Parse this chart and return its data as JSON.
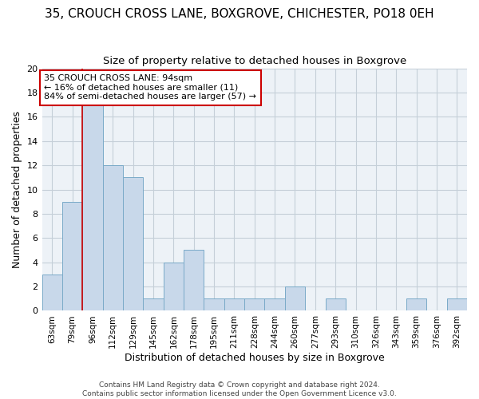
{
  "title": "35, CROUCH CROSS LANE, BOXGROVE, CHICHESTER, PO18 0EH",
  "subtitle": "Size of property relative to detached houses in Boxgrove",
  "xlabel": "Distribution of detached houses by size in Boxgrove",
  "ylabel": "Number of detached properties",
  "bar_values": [
    3,
    9,
    17,
    12,
    11,
    1,
    4,
    5,
    1,
    1,
    1,
    1,
    2,
    0,
    1,
    0,
    0,
    0,
    1,
    0,
    1
  ],
  "bin_labels": [
    "63sqm",
    "79sqm",
    "96sqm",
    "112sqm",
    "129sqm",
    "145sqm",
    "162sqm",
    "178sqm",
    "195sqm",
    "211sqm",
    "228sqm",
    "244sqm",
    "260sqm",
    "277sqm",
    "293sqm",
    "310sqm",
    "326sqm",
    "343sqm",
    "359sqm",
    "376sqm",
    "392sqm"
  ],
  "bar_color": "#c8d8ea",
  "bar_edge_color": "#7aaac8",
  "property_line_x": 1.5,
  "annotation_line1": "35 CROUCH CROSS LANE: 94sqm",
  "annotation_line2": "← 16% of detached houses are smaller (11)",
  "annotation_line3": "84% of semi-detached houses are larger (57) →",
  "annotation_box_color": "#ffffff",
  "annotation_box_edge": "#cc0000",
  "red_line_color": "#cc0000",
  "ylim": [
    0,
    20
  ],
  "yticks": [
    0,
    2,
    4,
    6,
    8,
    10,
    12,
    14,
    16,
    18,
    20
  ],
  "footer_line1": "Contains HM Land Registry data © Crown copyright and database right 2024.",
  "footer_line2": "Contains public sector information licensed under the Open Government Licence v3.0.",
  "background_color": "#edf2f7",
  "grid_color": "#c5cfd8",
  "title_fontsize": 11,
  "subtitle_fontsize": 9.5,
  "annotation_fontsize": 8,
  "ylabel_fontsize": 9,
  "xlabel_fontsize": 9,
  "tick_fontsize": 8,
  "xtick_fontsize": 7.5
}
